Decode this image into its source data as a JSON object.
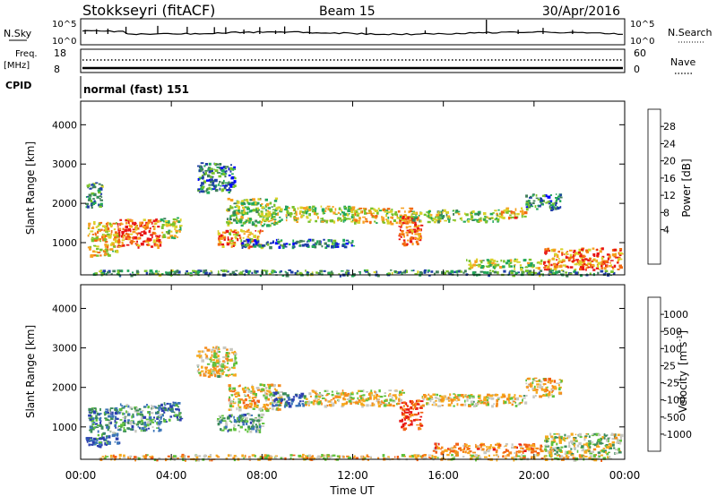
{
  "header": {
    "station": "Stokkseyri (fitACF)",
    "beam": "Beam 15",
    "date": "30/Apr/2016"
  },
  "status_panels": {
    "nsky_label": "N.Sky",
    "nsky_ticks": [
      "10^5",
      "10^0"
    ],
    "nsearch_label": "N.Search",
    "nsearch_ticks": [
      "10^5",
      "10^0"
    ],
    "freq_label": "Freq.",
    "freq_unit": "[MHz]",
    "freq_ticks": [
      "18",
      "8"
    ],
    "nave_label": "Nave",
    "nave_ticks": [
      "60",
      "0"
    ],
    "cpid_label": "CPID",
    "cpid_value": "normal (fast) 151"
  },
  "chart_data": [
    {
      "type": "heatmap",
      "name": "power",
      "ylabel": "Slant Range [km]",
      "ylim": [
        180,
        4600
      ],
      "yticks": [
        "1000",
        "2000",
        "3000",
        "4000"
      ],
      "xlim_hours": [
        0,
        24
      ],
      "colorbar": {
        "label": "Power [dB]",
        "ticks": [
          "28",
          "24",
          "20",
          "16",
          "12",
          "8",
          "4"
        ],
        "colors": [
          "#0000ff",
          "#1f3ea8",
          "#3f7f5a",
          "#22a85a",
          "#79c22b",
          "#d8d22a",
          "#f7a020",
          "#f26a10",
          "#e81515"
        ]
      },
      "regions": [
        {
          "t": [
            0.3,
            1.6
          ],
          "r": [
            680,
            1550
          ],
          "level": 0.65
        },
        {
          "t": [
            1.6,
            3.5
          ],
          "r": [
            900,
            1620
          ],
          "level": 0.85
        },
        {
          "t": [
            3.5,
            4.4
          ],
          "r": [
            1150,
            1650
          ],
          "level": 0.55
        },
        {
          "t": [
            0.2,
            0.9
          ],
          "r": [
            1900,
            2550
          ],
          "level": 0.35
        },
        {
          "t": [
            5.1,
            6.8
          ],
          "r": [
            2300,
            3050
          ],
          "level": 0.3
        },
        {
          "t": [
            6.0,
            8.0
          ],
          "r": [
            900,
            1350
          ],
          "level": 0.75
        },
        {
          "t": [
            6.4,
            8.6
          ],
          "r": [
            1450,
            2150
          ],
          "level": 0.5
        },
        {
          "t": [
            8.6,
            12.0
          ],
          "r": [
            1550,
            1950
          ],
          "level": 0.55
        },
        {
          "t": [
            12.0,
            14.6
          ],
          "r": [
            1500,
            1900
          ],
          "level": 0.65
        },
        {
          "t": [
            14.0,
            15.0
          ],
          "r": [
            950,
            1700
          ],
          "level": 0.85
        },
        {
          "t": [
            14.6,
            18.5
          ],
          "r": [
            1550,
            1850
          ],
          "level": 0.5
        },
        {
          "t": [
            18.5,
            19.6
          ],
          "r": [
            1650,
            1900
          ],
          "level": 0.7
        },
        {
          "t": [
            19.6,
            21.2
          ],
          "r": [
            1850,
            2250
          ],
          "level": 0.3
        },
        {
          "t": [
            17.0,
            20.3
          ],
          "r": [
            360,
            600
          ],
          "level": 0.55
        },
        {
          "t": [
            20.4,
            23.8
          ],
          "r": [
            330,
            880
          ],
          "level": 0.8
        },
        {
          "t": [
            7.0,
            12.0
          ],
          "r": [
            900,
            1100
          ],
          "level": 0.25
        },
        {
          "t": [
            0.5,
            23.5
          ],
          "r": [
            190,
            320
          ],
          "level": 0.35
        }
      ]
    },
    {
      "type": "heatmap",
      "name": "velocity",
      "ylabel": "Slant Range [km]",
      "ylim": [
        180,
        4600
      ],
      "yticks": [
        "1000",
        "2000",
        "3000",
        "4000"
      ],
      "xlim_hours": [
        0,
        24
      ],
      "xticks": [
        "00:00",
        "04:00",
        "08:00",
        "12:00",
        "16:00",
        "20:00",
        "00:00"
      ],
      "xlabel": "Time UT",
      "colorbar": {
        "label": "Velocity",
        "unit": "[m s",
        "unit_sup": "-1",
        "unit_close": "]",
        "ticks": [
          "1000",
          "500",
          "100",
          "25",
          "-25",
          "-100",
          "-500",
          "-1000"
        ],
        "colors": [
          "#2d3fb0",
          "#3a74b8",
          "#3b8c5a",
          "#5fc13c",
          "#c8c8c0",
          "#f6a91d",
          "#f48b1c",
          "#f35f12",
          "#e81515"
        ]
      },
      "regions": [
        {
          "t": [
            0.3,
            1.6
          ],
          "r": [
            600,
            1500
          ],
          "level": 0.25
        },
        {
          "t": [
            1.6,
            3.5
          ],
          "r": [
            900,
            1600
          ],
          "level": 0.3
        },
        {
          "t": [
            3.5,
            4.4
          ],
          "r": [
            1150,
            1650
          ],
          "level": 0.2
        },
        {
          "t": [
            0.2,
            1.2
          ],
          "r": [
            500,
            750
          ],
          "level": 0.05
        },
        {
          "t": [
            5.1,
            6.8
          ],
          "r": [
            2300,
            3050
          ],
          "level": 0.55
        },
        {
          "t": [
            6.0,
            8.0
          ],
          "r": [
            900,
            1350
          ],
          "level": 0.3
        },
        {
          "t": [
            6.5,
            8.8
          ],
          "r": [
            1450,
            2100
          ],
          "level": 0.6
        },
        {
          "t": [
            8.4,
            9.8
          ],
          "r": [
            1550,
            1900
          ],
          "level": 0.12
        },
        {
          "t": [
            9.8,
            14.2
          ],
          "r": [
            1550,
            1950
          ],
          "level": 0.55
        },
        {
          "t": [
            14.0,
            15.0
          ],
          "r": [
            950,
            1700
          ],
          "level": 0.9
        },
        {
          "t": [
            15.0,
            19.6
          ],
          "r": [
            1550,
            1850
          ],
          "level": 0.55
        },
        {
          "t": [
            19.6,
            21.2
          ],
          "r": [
            1800,
            2250
          ],
          "level": 0.58
        },
        {
          "t": [
            15.5,
            20.3
          ],
          "r": [
            360,
            600
          ],
          "level": 0.72
        },
        {
          "t": [
            20.4,
            23.8
          ],
          "r": [
            330,
            850
          ],
          "level": 0.45
        },
        {
          "t": [
            0.5,
            23.5
          ],
          "r": [
            190,
            320
          ],
          "level": 0.6
        }
      ]
    }
  ]
}
